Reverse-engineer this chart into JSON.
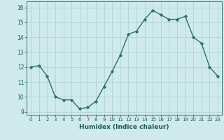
{
  "x": [
    0,
    1,
    2,
    3,
    4,
    5,
    6,
    7,
    8,
    9,
    10,
    11,
    12,
    13,
    14,
    15,
    16,
    17,
    18,
    19,
    20,
    21,
    22,
    23
  ],
  "y": [
    12.0,
    12.1,
    11.4,
    10.0,
    9.8,
    9.8,
    9.2,
    9.3,
    9.7,
    10.7,
    11.7,
    12.8,
    14.2,
    14.4,
    15.2,
    15.8,
    15.5,
    15.2,
    15.2,
    15.4,
    14.0,
    13.6,
    12.0,
    11.4
  ],
  "line_color": "#2e7070",
  "marker": "D",
  "marker_size": 1.8,
  "linewidth": 1.0,
  "xlabel": "Humidex (Indice chaleur)",
  "xlabel_fontsize": 6.5,
  "xlabel_color": "#1a5c5c",
  "bg_color": "#ceeaea",
  "grid_color": "#aad0d0",
  "tick_color": "#1a5c5c",
  "axis_color": "#1a5c5c",
  "ylim": [
    8.8,
    16.4
  ],
  "xlim": [
    -0.5,
    23.5
  ],
  "yticks": [
    9,
    10,
    11,
    12,
    13,
    14,
    15,
    16
  ],
  "xticks": [
    0,
    1,
    2,
    3,
    4,
    5,
    6,
    7,
    8,
    9,
    10,
    11,
    12,
    13,
    14,
    15,
    16,
    17,
    18,
    19,
    20,
    21,
    22,
    23
  ],
  "tick_fontsize": 5.0,
  "ytick_fontsize": 5.5
}
